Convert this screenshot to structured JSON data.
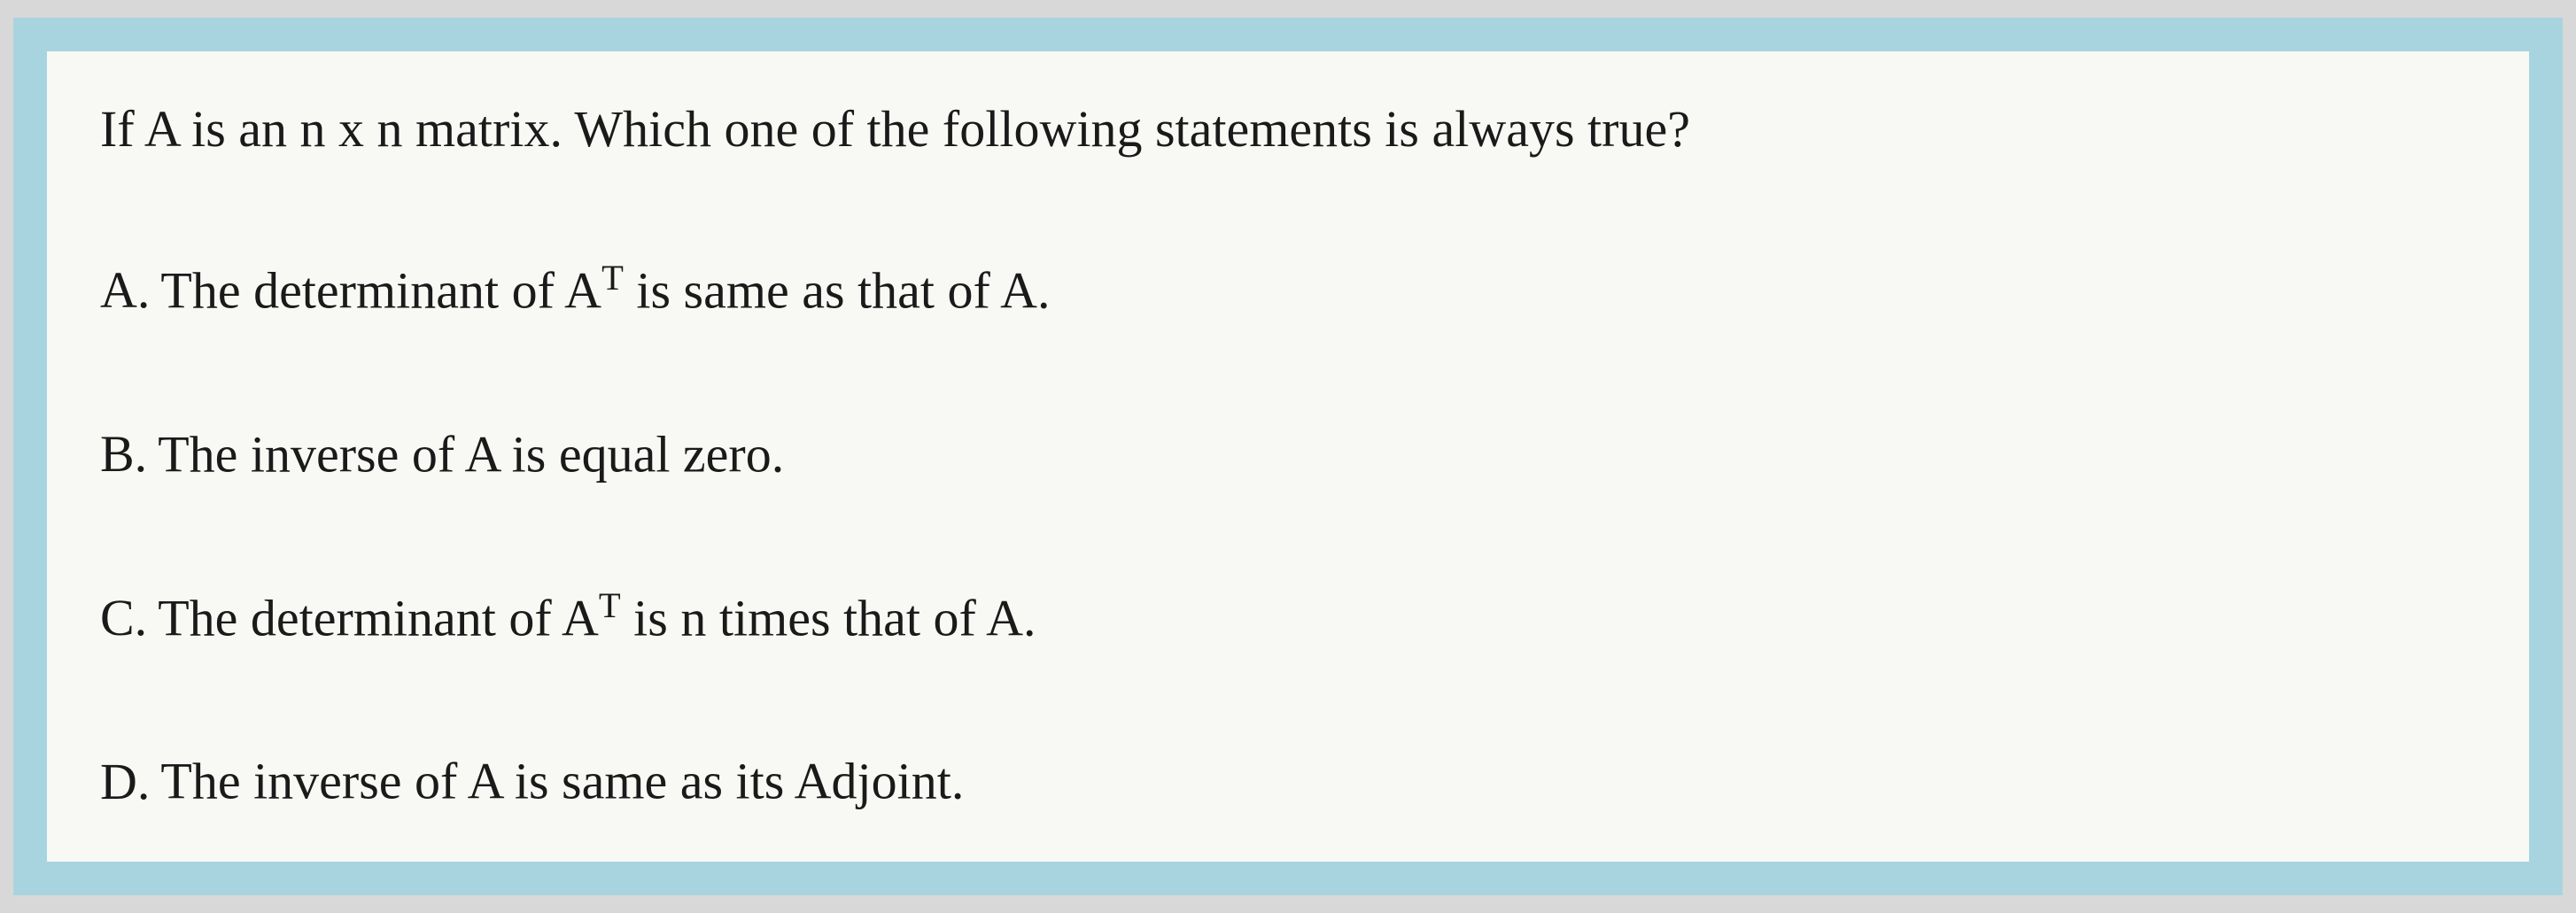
{
  "question": {
    "text": "If A is an n x n  matrix.  Which one of the following statements  is  always true?",
    "options": [
      {
        "letter": "A.",
        "prefix": "The determinant of A",
        "superscript": "T",
        "suffix": " is same as that of A."
      },
      {
        "letter": "B.",
        "prefix": "The inverse of A is equal zero.",
        "superscript": "",
        "suffix": ""
      },
      {
        "letter": "C.",
        "prefix": "The determinant of A",
        "superscript": "T",
        "suffix": " is n times that of A."
      },
      {
        "letter": "D.",
        "prefix": "The inverse of A is same as its Adjoint.",
        "superscript": "",
        "suffix": ""
      }
    ]
  },
  "styling": {
    "outer_background": "#d8d8d8",
    "frame_color": "#a8d4e0",
    "content_background": "#f8f8f5",
    "text_color": "#1a1a1a",
    "question_fontsize": 58,
    "option_fontsize": 58,
    "frame_padding": 38,
    "content_padding_v": 50,
    "content_padding_h": 60,
    "font_family": "Georgia"
  }
}
